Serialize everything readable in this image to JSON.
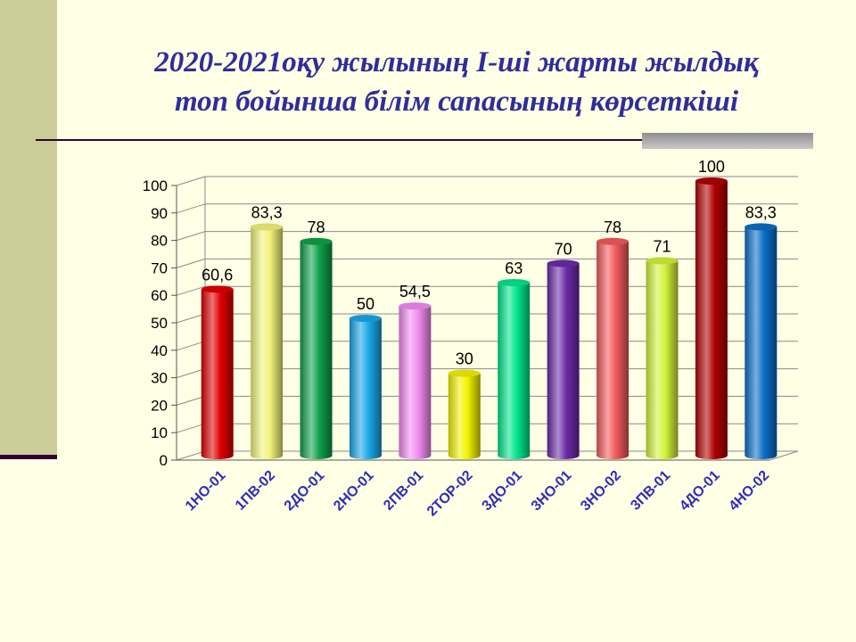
{
  "title": {
    "line1": "2020-2021оқу жылының І-ші жарты жылдық",
    "line2": "топ бойынша білім сапасының көрсеткіші"
  },
  "chart_data": {
    "type": "bar",
    "title": "2020-2021оқу жылының І-ші жарты жылдық топ бойынша білім сапасының көрсеткіші",
    "categories": [
      "1НО-01",
      "1ПВ-02",
      "2ДО-01",
      "2НО-01",
      "2ПВ-01",
      "2ТОР-02",
      "3ДО-01",
      "3НО-01",
      "3НО-02",
      "3ПВ-01",
      "4ДО-01",
      "4НО-02"
    ],
    "values": [
      60.6,
      83.3,
      78,
      50,
      54.5,
      30,
      63,
      70,
      78,
      71,
      100,
      83.3
    ],
    "data_labels": [
      "60,6",
      "83,3",
      "78",
      "50",
      "54,5",
      "30",
      "63",
      "70",
      "78",
      "71",
      "100",
      "83,3"
    ],
    "colors": [
      "#E00000",
      "#F2F27A",
      "#0FA04A",
      "#1AA8E8",
      "#F28CF2",
      "#F2F200",
      "#00E68C",
      "#6B2BA8",
      "#F25A5A",
      "#D2F23A",
      "#B00000",
      "#0A6EC8"
    ],
    "yticks": [
      "0",
      "10",
      "20",
      "30",
      "40",
      "50",
      "60",
      "70",
      "80",
      "90",
      "100"
    ],
    "ylim": [
      0,
      100
    ],
    "xlabel": "",
    "ylabel": "",
    "grid": true,
    "legend": "none"
  }
}
